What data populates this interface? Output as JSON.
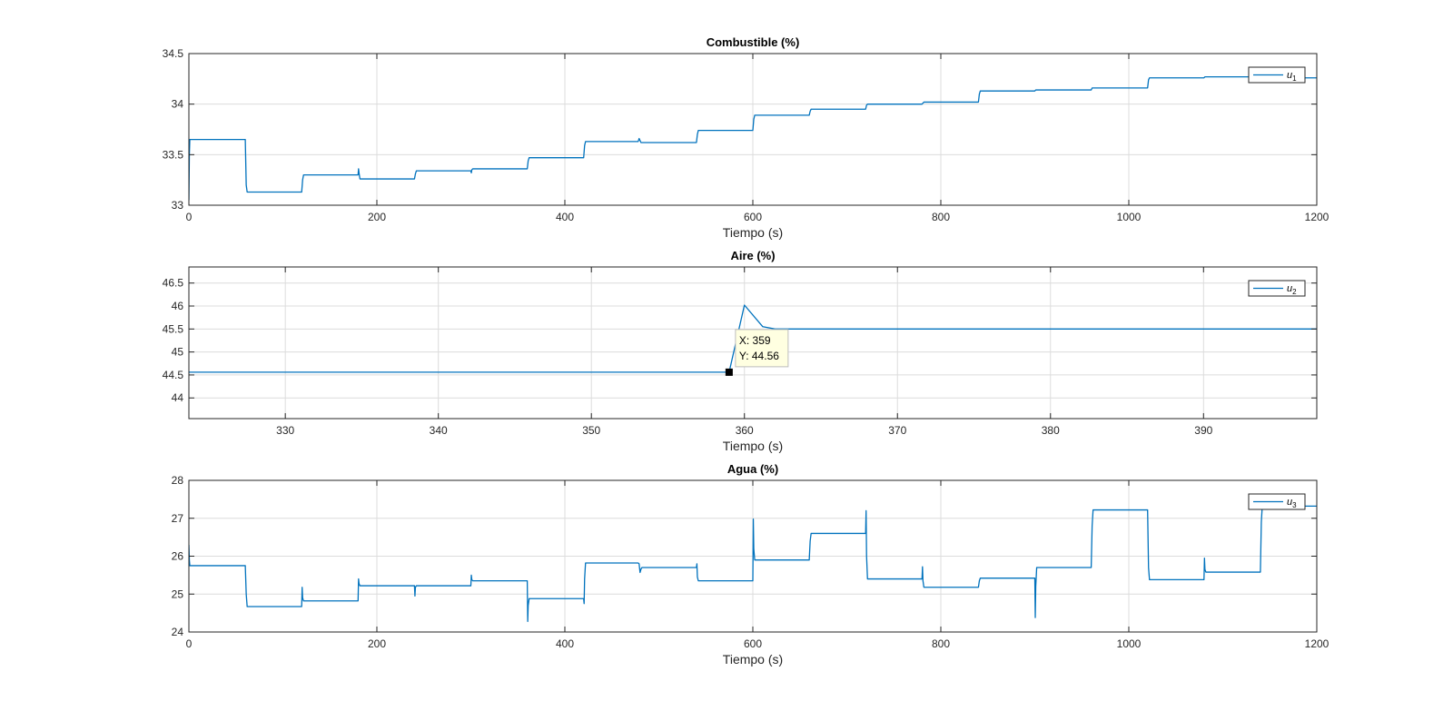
{
  "chart_data": [
    {
      "type": "line",
      "title": "Combustible (%)",
      "xlabel": "Tiempo (s)",
      "ylabel": "",
      "xlim": [
        0,
        1200
      ],
      "ylim": [
        33,
        34.5
      ],
      "xticks": [
        0,
        200,
        400,
        600,
        800,
        1000,
        1200
      ],
      "yticks": [
        33,
        33.5,
        34,
        34.5
      ],
      "xtick_labels": [
        "0",
        "200",
        "400",
        "600",
        "800",
        "1000",
        "1200"
      ],
      "ytick_labels": [
        "33",
        "33.5",
        "34",
        "34.5"
      ],
      "grid": true,
      "legend_position": "top-right",
      "series": [
        {
          "name": "u1",
          "name_base": "u",
          "name_sub": "1",
          "color": "#0072BD",
          "x": [
            0,
            0.5,
            1,
            60,
            61,
            62,
            120,
            121,
            122,
            180,
            180.5,
            181,
            182,
            240,
            241,
            242,
            300,
            300.5,
            301,
            302,
            360,
            361,
            362,
            420,
            421,
            422,
            478,
            479,
            480,
            481,
            482,
            540,
            541,
            542,
            600,
            601,
            602,
            660,
            661,
            662,
            720,
            721,
            722,
            780,
            781,
            782,
            840,
            841,
            842,
            900,
            901,
            902,
            960,
            961,
            962,
            1020,
            1021,
            1022,
            1080,
            1081,
            1082,
            1140,
            1141,
            1142,
            1200
          ],
          "y": [
            33.05,
            33.5,
            33.65,
            33.65,
            33.2,
            33.13,
            33.13,
            33.25,
            33.3,
            33.3,
            33.36,
            33.32,
            33.26,
            33.26,
            33.31,
            33.34,
            33.34,
            33.32,
            33.35,
            33.36,
            33.36,
            33.44,
            33.47,
            33.47,
            33.59,
            33.63,
            33.63,
            33.66,
            33.64,
            33.62,
            33.62,
            33.62,
            33.7,
            33.74,
            33.74,
            33.85,
            33.89,
            33.89,
            33.93,
            33.95,
            33.95,
            33.99,
            34.0,
            34.0,
            34.01,
            34.02,
            34.02,
            34.1,
            34.13,
            34.13,
            34.14,
            34.14,
            34.14,
            34.16,
            34.16,
            34.16,
            34.24,
            34.26,
            34.26,
            34.27,
            34.27,
            34.27,
            34.27,
            34.26,
            34.26
          ]
        }
      ]
    },
    {
      "type": "line",
      "title": "Aire (%)",
      "xlabel": "Tiempo (s)",
      "ylabel": "",
      "xlim": [
        323.7,
        397.4
      ],
      "ylim": [
        43.55,
        46.85
      ],
      "xticks": [
        330,
        340,
        350,
        360,
        370,
        380,
        390
      ],
      "yticks": [
        44,
        44.5,
        45,
        45.5,
        46,
        46.5
      ],
      "xtick_labels": [
        "330",
        "340",
        "350",
        "360",
        "370",
        "380",
        "390"
      ],
      "ytick_labels": [
        "44",
        "44.5",
        "45",
        "45.5",
        "46",
        "46.5"
      ],
      "grid": true,
      "legend_position": "top-right",
      "series": [
        {
          "name": "u2",
          "name_base": "u",
          "name_sub": "2",
          "color": "#0072BD",
          "x": [
            323.7,
            359,
            360,
            361.2,
            362,
            397.4
          ],
          "y": [
            44.56,
            44.56,
            46.02,
            45.55,
            45.5,
            45.5
          ]
        }
      ],
      "datatip": {
        "x_text": "X: 359",
        "y_text": "Y: 44.56",
        "x": 359,
        "y": 44.56
      }
    },
    {
      "type": "line",
      "title": "Agua (%)",
      "xlabel": "Tiempo (s)",
      "ylabel": "",
      "xlim": [
        0,
        1200
      ],
      "ylim": [
        24,
        28
      ],
      "xticks": [
        0,
        200,
        400,
        600,
        800,
        1000,
        1200
      ],
      "yticks": [
        24,
        25,
        26,
        27,
        28
      ],
      "xtick_labels": [
        "0",
        "200",
        "400",
        "600",
        "800",
        "1000",
        "1200"
      ],
      "ytick_labels": [
        "24",
        "25",
        "26",
        "27",
        "28"
      ],
      "grid": true,
      "legend_position": "top-right",
      "series": [
        {
          "name": "u3",
          "name_base": "u",
          "name_sub": "3",
          "color": "#0072BD",
          "x": [
            0,
            0.5,
            1,
            60,
            61,
            62,
            120,
            120.5,
            121,
            122,
            180,
            180.5,
            181,
            182,
            240,
            240.5,
            241,
            242,
            300,
            300.5,
            301,
            302,
            360,
            360.5,
            361,
            362,
            420,
            420.5,
            421,
            422,
            478,
            479,
            480,
            481,
            482,
            540,
            540.5,
            541,
            542,
            600,
            600.5,
            601,
            602,
            660,
            661,
            662,
            720,
            720.5,
            721,
            722,
            780,
            780.5,
            781,
            782,
            840,
            841,
            842,
            900,
            900.5,
            901,
            902,
            960,
            961,
            962,
            1020,
            1021,
            1022,
            1080,
            1080.5,
            1081,
            1082,
            1140,
            1141,
            1142,
            1200
          ],
          "y": [
            26.3,
            25.9,
            25.75,
            25.75,
            25.0,
            24.67,
            24.67,
            25.18,
            24.9,
            24.82,
            24.82,
            25.4,
            25.28,
            25.22,
            25.22,
            24.95,
            25.18,
            25.22,
            25.22,
            25.5,
            25.38,
            25.35,
            25.35,
            24.28,
            24.7,
            24.88,
            24.88,
            24.75,
            25.4,
            25.82,
            25.82,
            25.8,
            25.57,
            25.66,
            25.7,
            25.7,
            25.8,
            25.45,
            25.35,
            25.35,
            26.98,
            26.2,
            25.9,
            25.9,
            26.4,
            26.6,
            26.6,
            27.2,
            26.0,
            25.4,
            25.4,
            25.72,
            25.35,
            25.18,
            25.18,
            25.35,
            25.42,
            25.42,
            24.38,
            25.2,
            25.7,
            25.7,
            26.8,
            27.22,
            27.22,
            25.7,
            25.38,
            25.38,
            25.95,
            25.65,
            25.58,
            25.58,
            26.9,
            27.32,
            27.32
          ]
        }
      ]
    }
  ]
}
